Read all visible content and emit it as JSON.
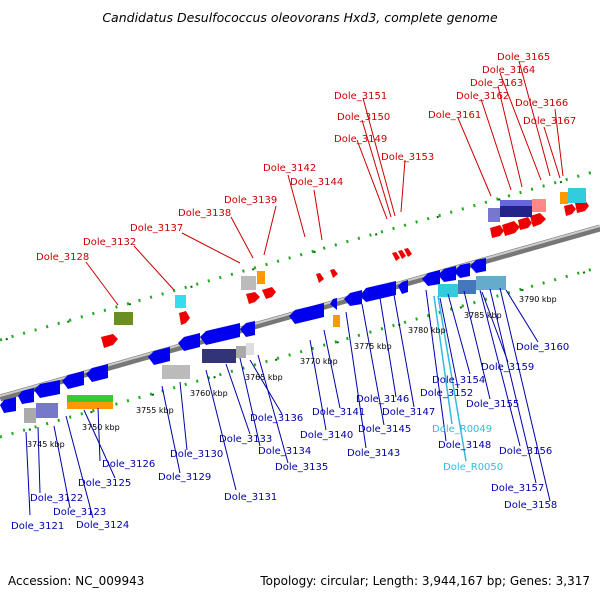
{
  "title": "Candidatus Desulfococcus oleovorans Hxd3, complete genome",
  "footer": {
    "accession": "Accession: NC_009943",
    "topology": "Topology: circular; Length: 3,944,167 bp; Genes: 3,317"
  },
  "colors": {
    "top_labels": "#cc0000",
    "bottom_labels": "#0000aa",
    "rna_labels": "#33bbdd",
    "forward_genes": "#ff0000",
    "reverse_genes": "#0000ee",
    "tick_green": "#008800"
  },
  "kbp_labels": [
    "3745 kbp",
    "3750 kbp",
    "3755 kbp",
    "3760 kbp",
    "3765 kbp",
    "3770 kbp",
    "3775 kbp",
    "3780 kbp",
    "3785 kbp",
    "3790 kbp"
  ],
  "top_labels": [
    "Dole_3128",
    "Dole_3132",
    "Dole_3137",
    "Dole_3138",
    "Dole_3139",
    "Dole_3142",
    "Dole_3144",
    "Dole_3149",
    "Dole_3150",
    "Dole_3151",
    "Dole_3153",
    "Dole_3161",
    "Dole_3162",
    "Dole_3163",
    "Dole_3164",
    "Dole_3165",
    "Dole_3166",
    "Dole_3167"
  ],
  "bottom_labels": [
    "Dole_3121",
    "Dole_3122",
    "Dole_3123",
    "Dole_3124",
    "Dole_3125",
    "Dole_3126",
    "Dole_3129",
    "Dole_3130",
    "Dole_3131",
    "Dole_3133",
    "Dole_3134",
    "Dole_3135",
    "Dole_3136",
    "Dole_3140",
    "Dole_3141",
    "Dole_3143",
    "Dole_3145",
    "Dole_3146",
    "Dole_3147",
    "Dole_3148",
    "Dole_3152",
    "Dole_3154",
    "Dole_3155",
    "Dole_3156",
    "Dole_3157",
    "Dole_3158",
    "Dole_3159",
    "Dole_3160"
  ],
  "rna_labels": [
    "Dole_R0049",
    "Dole_R0050"
  ]
}
